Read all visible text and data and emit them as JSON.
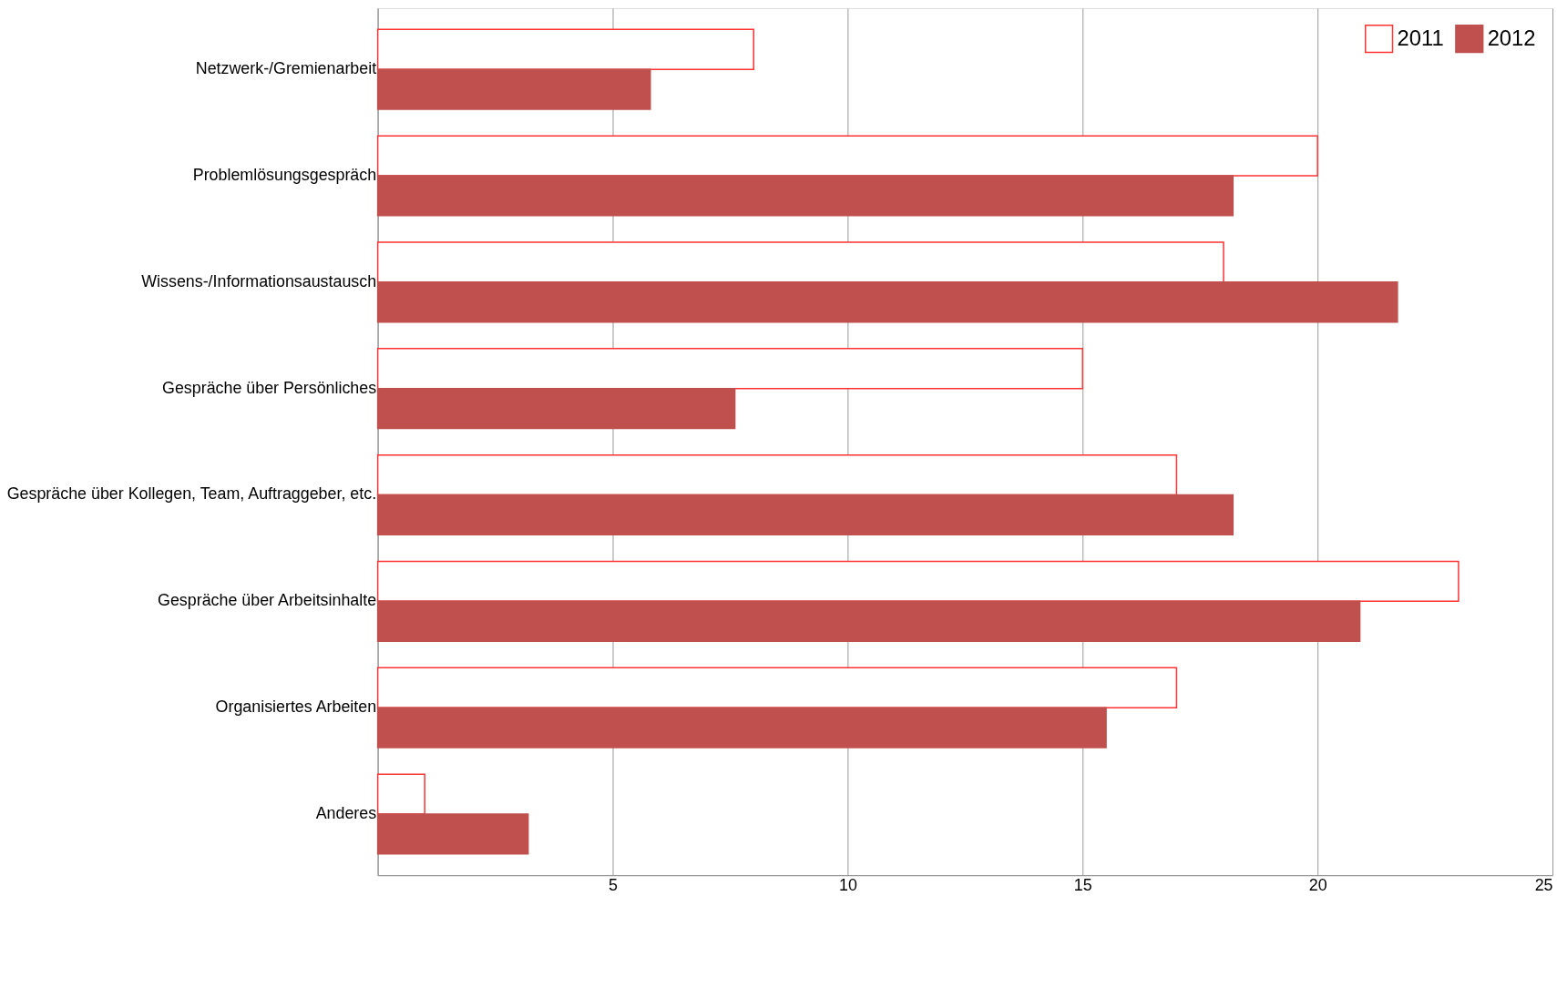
{
  "chart_data": {
    "type": "bar",
    "orientation": "horizontal",
    "categories": [
      "Netzwerk-/Gremienarbeit",
      "Problemlösungsgespräch",
      "Wissens-/Informationsaustausch",
      "Gespräche über Persönliches",
      "Gespräche über Kollegen, Team, Auftraggeber, etc.",
      "Gespräche über Arbeitsinhalte",
      "Organisiertes Arbeiten",
      "Anderes"
    ],
    "series": [
      {
        "name": "2011",
        "color": "#ff3333",
        "values": [
          8,
          20,
          18,
          15,
          17,
          23,
          17,
          1
        ]
      },
      {
        "name": "2012",
        "color": "#c0504d",
        "values": [
          5.8,
          18.2,
          21.7,
          7.6,
          18.2,
          20.9,
          15.5,
          3.2
        ]
      }
    ],
    "xlim": [
      0,
      25
    ],
    "xticks": [
      {
        "value": 0,
        "label": null
      },
      5,
      10,
      15,
      20,
      25
    ],
    "grid": "x",
    "legend": "top right"
  }
}
